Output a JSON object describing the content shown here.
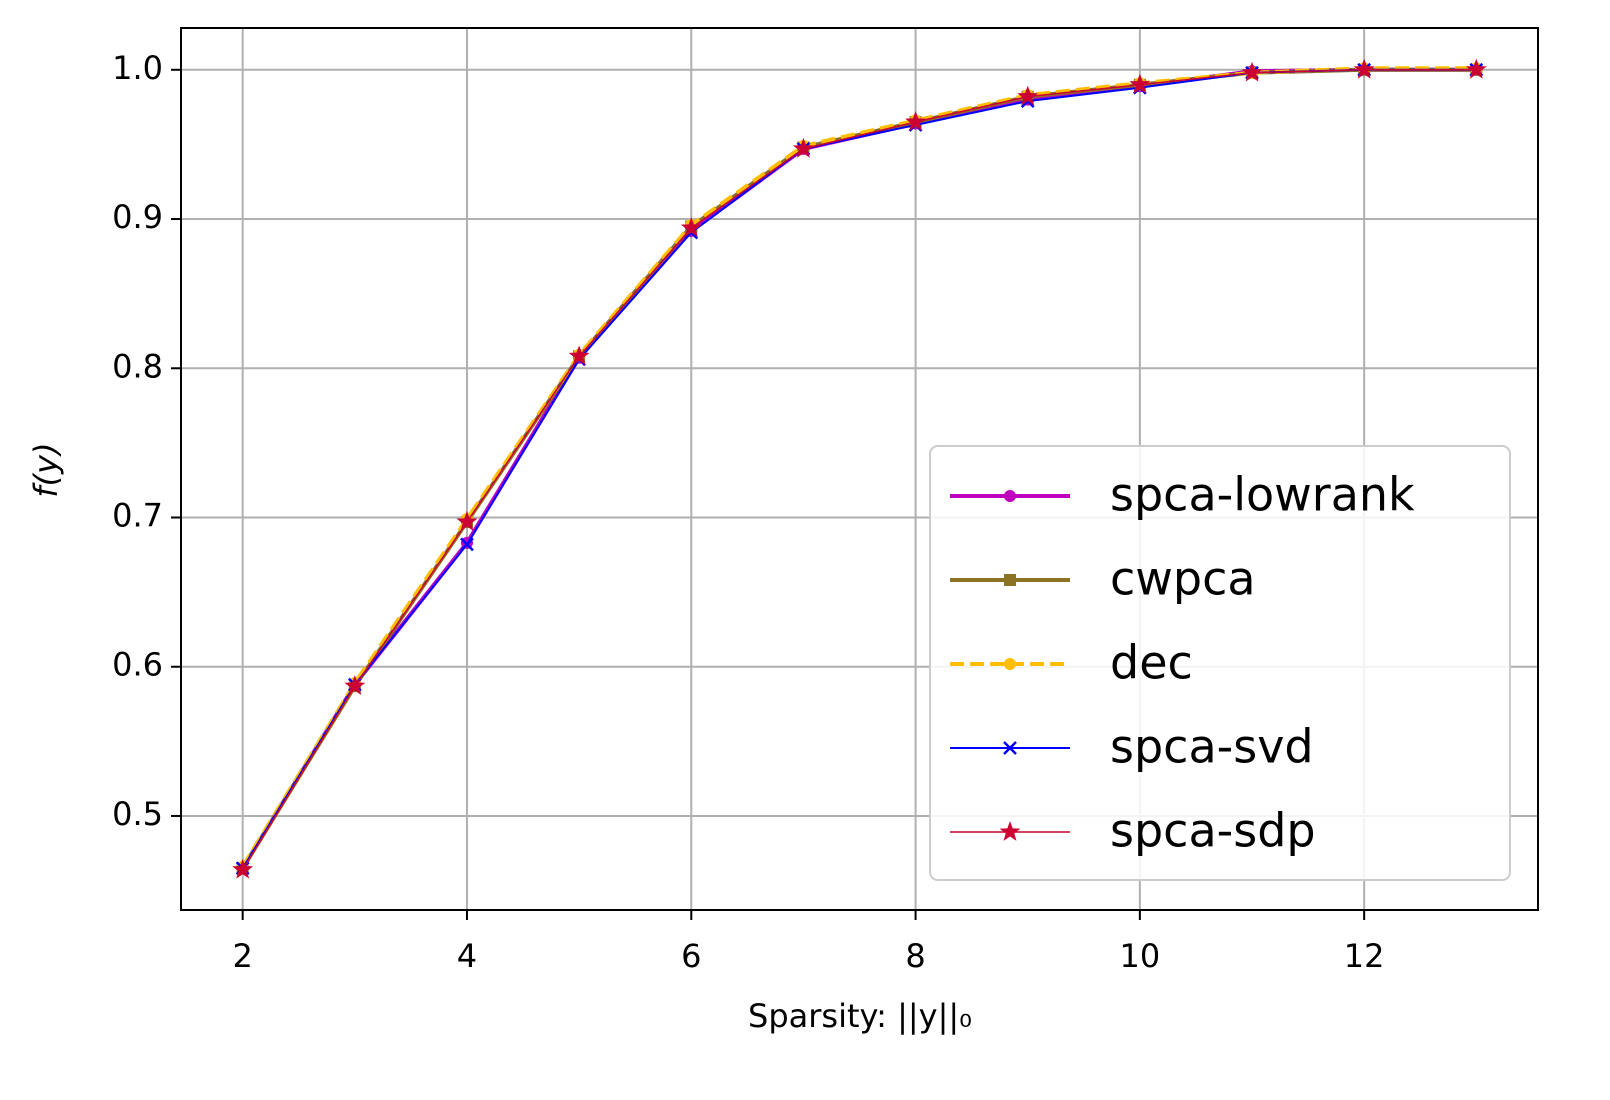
{
  "chart_data": {
    "type": "line",
    "xlabel": "Sparsity: ||y||₀",
    "ylabel": "f(y)",
    "x": [
      2,
      3,
      4,
      5,
      6,
      7,
      8,
      9,
      10,
      11,
      12,
      13
    ],
    "series": [
      {
        "name": "spca-lowrank",
        "color": "#bf00bf",
        "marker": "circle",
        "linestyle": "solid",
        "linewidth": 4,
        "values": [
          0.465,
          0.588,
          0.683,
          0.807,
          0.892,
          0.947,
          0.964,
          0.98,
          0.989,
          0.999,
          1.0,
          1.0
        ]
      },
      {
        "name": "cwpca",
        "color": "#8c7323",
        "marker": "square",
        "linestyle": "solid",
        "linewidth": 4,
        "values": [
          0.465,
          0.587,
          0.697,
          0.808,
          0.895,
          0.948,
          0.965,
          0.982,
          0.99,
          0.998,
          1.0,
          1.0
        ]
      },
      {
        "name": "dec",
        "color": "#ffbf00",
        "marker": "circle",
        "linestyle": "dashed",
        "linewidth": 4,
        "values": [
          0.466,
          0.589,
          0.699,
          0.809,
          0.896,
          0.949,
          0.966,
          0.983,
          0.991,
          0.998,
          1.001,
          1.001
        ]
      },
      {
        "name": "spca-svd",
        "color": "#0000ff",
        "marker": "x",
        "linestyle": "solid",
        "linewidth": 2,
        "values": [
          0.465,
          0.588,
          0.682,
          0.806,
          0.891,
          0.947,
          0.963,
          0.979,
          0.988,
          0.998,
          1.0,
          1.0
        ]
      },
      {
        "name": "spca-sdp",
        "color": "#cc0033",
        "marker": "star",
        "linestyle": "solid",
        "linewidth": 1.5,
        "values": [
          0.464,
          0.587,
          0.697,
          0.808,
          0.894,
          0.947,
          0.965,
          0.982,
          0.99,
          0.998,
          1.0,
          1.0
        ]
      }
    ],
    "xlim": [
      1.45,
      13.55
    ],
    "xticks": [
      2,
      4,
      6,
      8,
      10,
      12
    ],
    "ylim": [
      0.437,
      1.028
    ],
    "yticks": [
      0.5,
      0.6,
      0.7,
      0.8,
      0.9,
      {
        "value": 1,
        "label": "1.0"
      }
    ],
    "grid": true,
    "legend": "lower right"
  }
}
